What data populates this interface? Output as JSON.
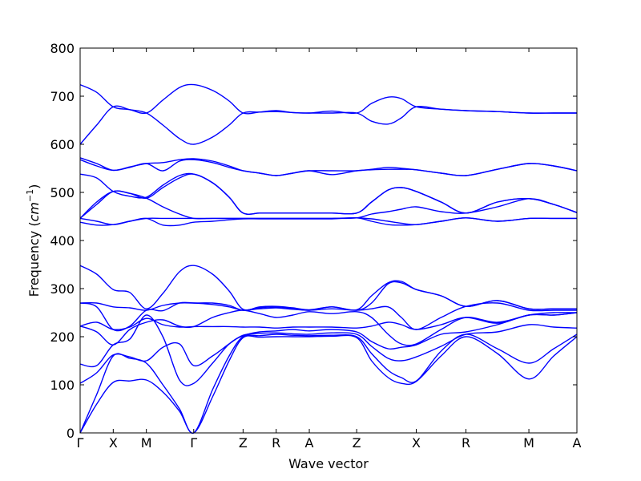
{
  "chart_data": {
    "type": "line",
    "xlabel": "Wave vector",
    "ylabel": "Frequency",
    "ylabel_unit": "cm",
    "ylabel_unit_exp": "−1",
    "ylim": [
      0,
      800
    ],
    "yticks": [
      0,
      100,
      200,
      300,
      400,
      500,
      600,
      700,
      800
    ],
    "line_color": "#0000ff",
    "kpoints": [
      {
        "label": "Γ",
        "x": 0
      },
      {
        "label": "X",
        "x": 1
      },
      {
        "label": "M",
        "x": 2
      },
      {
        "label": "Γ",
        "x": 3.43
      },
      {
        "label": "Z",
        "x": 4.92
      },
      {
        "label": "R",
        "x": 5.92
      },
      {
        "label": "A",
        "x": 6.92
      },
      {
        "label": "Z",
        "x": 8.35
      },
      {
        "label": "X",
        "x": 10.15
      },
      {
        "label": "R",
        "x": 11.65
      },
      {
        "label": "M",
        "x": 13.55
      },
      {
        "label": "A",
        "x": 15.0
      }
    ],
    "xlim": [
      0,
      15.0
    ],
    "series": [
      {
        "x": [
          0,
          0.5,
          1,
          1.5,
          2,
          2.5,
          3,
          3.43,
          4,
          4.5,
          4.92,
          5.42,
          5.92,
          6.42,
          6.92,
          7.6,
          8.35,
          8.8,
          9.3,
          9.7,
          10.15,
          10.9,
          11.65,
          12.6,
          13.55,
          14.3,
          15.0
        ],
        "values": [
          0,
          60,
          105,
          108,
          110,
          85,
          45,
          0,
          75,
          150,
          198,
          199,
          200,
          200,
          200,
          201,
          198,
          150,
          115,
          103,
          107,
          160,
          200,
          165,
          112,
          160,
          200
        ]
      },
      {
        "x": [
          0,
          0.5,
          1,
          1.5,
          2,
          2.5,
          3,
          3.43,
          4,
          4.5,
          4.92,
          5.42,
          5.92,
          6.42,
          6.92,
          7.6,
          8.35,
          8.8,
          9.3,
          9.7,
          10.15,
          10.9,
          11.65,
          12.6,
          13.55,
          14.3,
          15.0
        ],
        "values": [
          0,
          80,
          160,
          155,
          145,
          100,
          50,
          0,
          90,
          160,
          200,
          202,
          205,
          203,
          202,
          203,
          200,
          165,
          130,
          115,
          108,
          170,
          205,
          175,
          145,
          175,
          205
        ]
      },
      {
        "x": [
          0,
          0.5,
          1,
          1.5,
          2,
          2.5,
          3,
          3.43,
          4,
          4.5,
          4.92,
          5.42,
          5.92,
          6.42,
          6.92,
          7.6,
          8.35,
          8.8,
          9.3,
          9.7,
          10.15,
          10.9,
          11.65,
          12.6,
          13.55,
          14.3,
          15.0
        ],
        "values": [
          103,
          125,
          162,
          158,
          150,
          178,
          185,
          140,
          160,
          185,
          203,
          207,
          208,
          206,
          205,
          208,
          205,
          180,
          155,
          150,
          158,
          180,
          205,
          210,
          225,
          220,
          218
        ]
      },
      {
        "x": [
          0,
          0.5,
          1,
          1.5,
          2,
          2.5,
          3,
          3.43,
          4,
          4.5,
          4.92,
          5.42,
          5.92,
          6.42,
          6.92,
          7.6,
          8.35,
          8.8,
          9.3,
          9.7,
          10.15,
          10.9,
          11.65,
          12.6,
          13.55,
          14.3,
          15.0
        ],
        "values": [
          143,
          140,
          183,
          195,
          245,
          200,
          110,
          103,
          145,
          185,
          202,
          210,
          212,
          215,
          212,
          215,
          210,
          190,
          175,
          178,
          183,
          205,
          210,
          225,
          245,
          245,
          250
        ]
      },
      {
        "x": [
          0,
          0.5,
          1,
          1.5,
          2,
          2.5,
          3,
          3.43,
          4,
          4.5,
          4.92,
          5.42,
          5.92,
          6.42,
          6.92,
          7.6,
          8.35,
          8.8,
          9.3,
          9.7,
          10.15,
          10.9,
          11.65,
          12.6,
          13.55,
          14.3,
          15.0
        ],
        "values": [
          222,
          230,
          215,
          220,
          238,
          225,
          220,
          221,
          221,
          221,
          220,
          220,
          218,
          220,
          220,
          220,
          218,
          222,
          230,
          225,
          215,
          225,
          240,
          228,
          245,
          245,
          250
        ]
      },
      {
        "x": [
          0,
          0.5,
          1,
          1.5,
          2,
          2.5,
          3,
          3.43,
          4,
          4.5,
          4.92,
          5.42,
          5.92,
          6.42,
          6.92,
          7.6,
          8.35,
          8.8,
          9.3,
          9.7,
          10.15,
          10.9,
          11.65,
          12.6,
          13.55,
          14.3,
          15.0
        ],
        "values": [
          222,
          210,
          183,
          215,
          230,
          235,
          222,
          221,
          240,
          250,
          255,
          248,
          240,
          245,
          252,
          248,
          252,
          240,
          205,
          185,
          185,
          215,
          240,
          230,
          245,
          250,
          250
        ]
      },
      {
        "x": [
          0,
          0.5,
          1,
          1.5,
          2,
          2.5,
          3,
          3.43,
          4,
          4.5,
          4.92,
          5.42,
          5.92,
          6.42,
          6.92,
          7.6,
          8.35,
          8.8,
          9.3,
          9.7,
          10.15,
          10.9,
          11.65,
          12.6,
          13.55,
          14.3,
          15.0
        ],
        "values": [
          270,
          262,
          215,
          222,
          255,
          254,
          270,
          270,
          267,
          262,
          255,
          258,
          260,
          257,
          255,
          258,
          255,
          258,
          262,
          240,
          215,
          240,
          263,
          270,
          255,
          255,
          255
        ]
      },
      {
        "x": [
          0,
          0.5,
          1,
          1.5,
          2,
          2.5,
          3,
          3.43,
          4,
          4.5,
          4.92,
          5.42,
          5.92,
          6.42,
          6.92,
          7.6,
          8.35,
          8.8,
          9.3,
          9.7,
          10.15,
          10.9,
          11.65,
          12.6,
          13.55,
          14.3,
          15.0
        ],
        "values": [
          270,
          270,
          262,
          260,
          255,
          265,
          270,
          270,
          270,
          265,
          255,
          260,
          262,
          259,
          255,
          262,
          255,
          270,
          310,
          312,
          298,
          285,
          263,
          275,
          258,
          258,
          258
        ]
      },
      {
        "x": [
          0,
          0.5,
          1,
          1.5,
          2,
          2.5,
          3,
          3.43,
          4,
          4.5,
          4.92,
          5.42,
          5.92,
          6.42,
          6.92,
          7.6,
          8.35,
          8.8,
          9.3,
          9.7,
          10.15,
          10.9,
          11.65,
          12.6,
          13.55,
          14.3,
          15.0
        ],
        "values": [
          348,
          330,
          298,
          292,
          258,
          290,
          335,
          348,
          330,
          295,
          257,
          262,
          263,
          260,
          256,
          262,
          256,
          285,
          312,
          315,
          298,
          285,
          263,
          275,
          258,
          258,
          258
        ]
      },
      {
        "x": [
          0,
          0.5,
          1,
          1.5,
          2,
          2.5,
          3,
          3.43,
          4,
          4.5,
          4.92,
          5.42,
          5.92,
          6.42,
          6.92,
          7.6,
          8.35,
          8.8,
          9.3,
          9.7,
          10.15,
          10.9,
          11.65,
          12.6,
          13.55,
          14.3,
          15.0
        ],
        "values": [
          438,
          432,
          433,
          440,
          446,
          432,
          432,
          438,
          440,
          443,
          445,
          445,
          445,
          445,
          445,
          445,
          447,
          440,
          433,
          432,
          433,
          440,
          447,
          440,
          446,
          446,
          446
        ]
      },
      {
        "x": [
          0,
          0.5,
          1,
          1.5,
          2,
          2.5,
          3,
          3.43,
          4,
          4.5,
          4.92,
          5.42,
          5.92,
          6.42,
          6.92,
          7.6,
          8.35,
          8.8,
          9.3,
          9.7,
          10.15,
          10.9,
          11.65,
          12.6,
          13.55,
          14.3,
          15.0
        ],
        "values": [
          446,
          440,
          433,
          440,
          446,
          446,
          446,
          446,
          446,
          446,
          446,
          446,
          446,
          446,
          446,
          446,
          447,
          445,
          440,
          436,
          433,
          440,
          447,
          440,
          446,
          446,
          446
        ]
      },
      {
        "x": [
          0,
          0.5,
          1,
          1.5,
          2,
          2.5,
          3,
          3.43,
          4,
          4.5,
          4.92,
          5.42,
          5.92,
          6.42,
          6.92,
          7.6,
          8.35,
          8.8,
          9.3,
          9.7,
          10.15,
          10.9,
          11.65,
          12.6,
          13.55,
          14.3,
          15.0
        ],
        "values": [
          446,
          475,
          502,
          498,
          488,
          470,
          455,
          446,
          446,
          446,
          446,
          446,
          446,
          446,
          446,
          446,
          447,
          455,
          460,
          465,
          470,
          460,
          457,
          470,
          487,
          475,
          458
        ]
      },
      {
        "x": [
          0,
          0.5,
          1,
          1.5,
          2,
          2.5,
          3,
          3.43,
          4,
          4.5,
          4.92,
          5.42,
          5.92,
          6.42,
          6.92,
          7.6,
          8.35,
          8.8,
          9.3,
          9.7,
          10.15,
          10.9,
          11.65,
          12.6,
          13.55,
          14.3,
          15.0
        ],
        "values": [
          446,
          480,
          502,
          498,
          488,
          510,
          530,
          538,
          520,
          490,
          457,
          457,
          457,
          457,
          457,
          457,
          457,
          480,
          505,
          510,
          502,
          480,
          457,
          480,
          487,
          475,
          458
        ]
      },
      {
        "x": [
          0,
          0.5,
          1,
          1.5,
          2,
          2.5,
          3,
          3.43,
          4,
          4.5,
          4.92,
          5.42,
          5.92,
          6.42,
          6.92,
          7.6,
          8.35,
          8.8,
          9.3,
          9.7,
          10.15,
          10.9,
          11.65,
          12.6,
          13.55,
          14.3,
          15.0
        ],
        "values": [
          538,
          530,
          502,
          492,
          490,
          515,
          535,
          538,
          520,
          490,
          457,
          457,
          457,
          457,
          457,
          457,
          457,
          480,
          505,
          510,
          502,
          480,
          457,
          480,
          487,
          475,
          458
        ]
      },
      {
        "x": [
          0,
          0.5,
          1,
          1.5,
          2,
          2.5,
          3,
          3.43,
          4,
          4.5,
          4.92,
          5.42,
          5.92,
          6.42,
          6.92,
          7.6,
          8.35,
          8.8,
          9.3,
          9.7,
          10.15,
          10.9,
          11.65,
          12.6,
          13.55,
          14.3,
          15.0
        ],
        "values": [
          568,
          555,
          546,
          552,
          560,
          545,
          565,
          568,
          562,
          552,
          545,
          540,
          535,
          540,
          545,
          537,
          545,
          547,
          548,
          548,
          547,
          540,
          535,
          548,
          560,
          555,
          545
        ]
      },
      {
        "x": [
          0,
          0.5,
          1,
          1.5,
          2,
          2.5,
          3,
          3.43,
          4,
          4.5,
          4.92,
          5.42,
          5.92,
          6.42,
          6.92,
          7.6,
          8.35,
          8.8,
          9.3,
          9.7,
          10.15,
          10.9,
          11.65,
          12.6,
          13.55,
          14.3,
          15.0
        ],
        "values": [
          572,
          560,
          546,
          553,
          560,
          562,
          568,
          570,
          565,
          555,
          545,
          540,
          535,
          540,
          545,
          545,
          545,
          548,
          552,
          550,
          547,
          540,
          535,
          548,
          560,
          555,
          545
        ]
      },
      {
        "x": [
          0,
          0.5,
          1,
          1.5,
          2,
          2.5,
          3,
          3.43,
          4,
          4.5,
          4.92,
          5.42,
          5.92,
          6.42,
          6.92,
          7.6,
          8.35,
          8.8,
          9.3,
          9.7,
          10.15,
          10.9,
          11.65,
          12.6,
          13.55,
          14.3,
          15.0
        ],
        "values": [
          600,
          640,
          678,
          672,
          665,
          640,
          612,
          600,
          615,
          640,
          665,
          667,
          668,
          666,
          665,
          665,
          665,
          648,
          642,
          655,
          678,
          673,
          670,
          668,
          665,
          665,
          665
        ]
      },
      {
        "x": [
          0,
          0.5,
          1,
          1.5,
          2,
          2.5,
          3,
          3.43,
          4,
          4.5,
          4.92,
          5.42,
          5.92,
          6.42,
          6.92,
          7.6,
          8.35,
          8.8,
          9.3,
          9.7,
          10.15,
          10.9,
          11.65,
          12.6,
          13.55,
          14.3,
          15.0
        ],
        "values": [
          724,
          708,
          678,
          672,
          665,
          692,
          718,
          724,
          712,
          690,
          665,
          667,
          670,
          666,
          665,
          669,
          665,
          685,
          698,
          695,
          678,
          673,
          670,
          668,
          665,
          665,
          665
        ]
      }
    ]
  }
}
